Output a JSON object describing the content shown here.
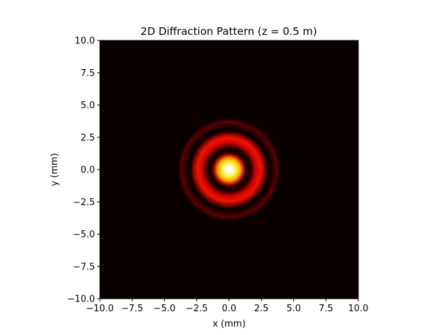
{
  "chart_data": {
    "type": "heatmap",
    "title": "2D Diffraction Pattern (z = 0.5 m)",
    "xlabel": "x (mm)",
    "ylabel": "y (mm)",
    "xlim": [
      -10,
      10
    ],
    "ylim": [
      -10,
      10
    ],
    "x_ticks": [
      -10.0,
      -7.5,
      -5.0,
      -2.5,
      0.0,
      2.5,
      5.0,
      7.5,
      10.0
    ],
    "y_ticks": [
      -10.0,
      -7.5,
      -5.0,
      -2.5,
      0.0,
      2.5,
      5.0,
      7.5,
      10.0
    ],
    "x_tick_labels": [
      "−10.0",
      "−7.5",
      "−5.0",
      "−2.5",
      "0.0",
      "2.5",
      "5.0",
      "7.5",
      "10.0"
    ],
    "y_tick_labels": [
      "−10.0",
      "−7.5",
      "−5.0",
      "−2.5",
      "0.0",
      "2.5",
      "5.0",
      "7.5",
      "10.0"
    ],
    "colormap": "hot",
    "background_color": "#0b0000",
    "grid": false,
    "pattern": "Airy disk",
    "center": [
      0.0,
      0.0
    ],
    "central_peak_radius_mm": 1.2,
    "first_dark_ring_radius_mm": 1.45,
    "first_bright_ring_radius_mm": 2.45,
    "second_dark_ring_radius_mm": 3.0,
    "second_bright_ring_radius_mm": 3.7,
    "outer_extent_mm": 4.0
  }
}
